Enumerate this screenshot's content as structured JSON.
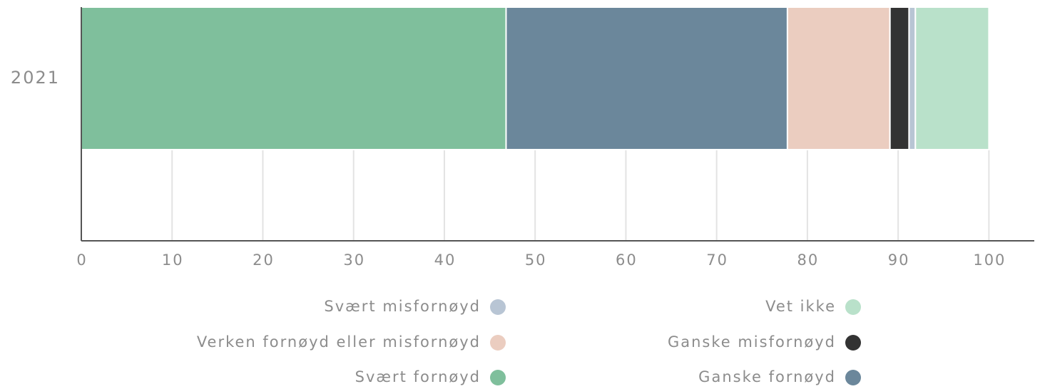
{
  "chart_data": {
    "type": "stacked-bar-horizontal",
    "categories": [
      "2021"
    ],
    "series": [
      {
        "name": "Svært fornøyd",
        "color": "#7fbf9c",
        "values": [
          46.8
        ]
      },
      {
        "name": "Ganske fornøyd",
        "color": "#6b879b",
        "values": [
          31
        ]
      },
      {
        "name": "Verken fornøyd eller misfornøyd",
        "color": "#ebcdc0",
        "values": [
          11.3
        ]
      },
      {
        "name": "Ganske misfornøyd",
        "color": "#333333",
        "values": [
          2.1
        ]
      },
      {
        "name": "Svært misfornøyd",
        "color": "#b8c5d4",
        "values": [
          0.7
        ]
      },
      {
        "name": "Vet ikke",
        "color": "#b9e1ca",
        "values": [
          8.1
        ]
      }
    ],
    "xlim": [
      0,
      105
    ],
    "xticks": [
      0,
      10,
      20,
      30,
      40,
      50,
      60,
      70,
      80,
      90,
      100
    ],
    "grid": true
  }
}
